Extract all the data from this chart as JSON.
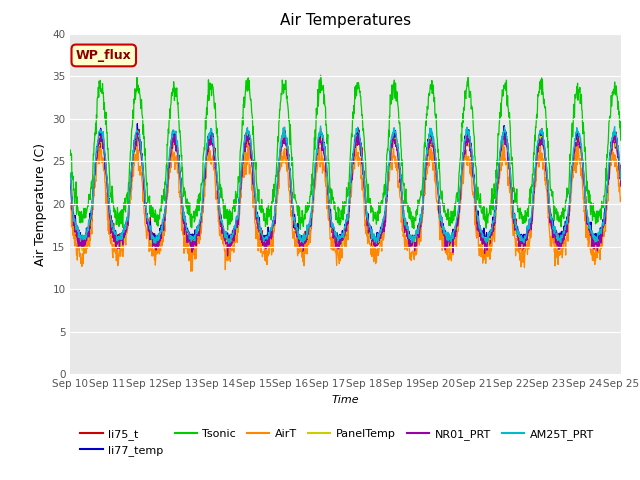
{
  "title": "Air Temperatures",
  "xlabel": "Time",
  "ylabel": "Air Temperature (C)",
  "ylim": [
    0,
    40
  ],
  "yticks": [
    0,
    5,
    10,
    15,
    20,
    25,
    30,
    35,
    40
  ],
  "xtick_labels": [
    "Sep 10",
    "Sep 11",
    "Sep 12",
    "Sep 13",
    "Sep 14",
    "Sep 15",
    "Sep 16",
    "Sep 17",
    "Sep 18",
    "Sep 19",
    "Sep 20",
    "Sep 21",
    "Sep 22",
    "Sep 23",
    "Sep 24",
    "Sep 25"
  ],
  "series_colors": {
    "li75_t": "#cc0000",
    "li77_temp": "#0000cc",
    "Tsonic": "#00cc00",
    "AirT": "#ff8800",
    "PanelTemp": "#cccc00",
    "NR01_PRT": "#9900aa",
    "AM25T_PRT": "#00bbcc"
  },
  "legend_order": [
    "li75_t",
    "li77_temp",
    "Tsonic",
    "AirT",
    "PanelTemp",
    "NR01_PRT",
    "AM25T_PRT"
  ],
  "annotation_text": "WP_flux",
  "annotation_bg": "#ffffcc",
  "annotation_border": "#cc0000",
  "annotation_text_color": "#880000",
  "bg_color": "#e8e8e8",
  "fig_bg_color": "#ffffff",
  "n_days": 15,
  "points_per_day": 96,
  "night_base": 12.0,
  "day_peak_base": 30.0
}
